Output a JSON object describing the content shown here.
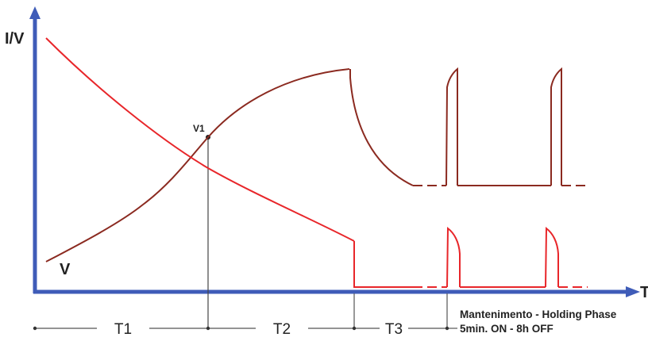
{
  "axes": {
    "y_label": "I/V",
    "x_label": "T",
    "color": "#3f5cb8"
  },
  "curves": {
    "voltage_label": "V",
    "voltage_color": "#8b2a20",
    "current_color": "#e8262a"
  },
  "markers": {
    "v1_label": "V1"
  },
  "phases": {
    "t1": "T1",
    "t2": "T2",
    "t3": "T3",
    "holding_line1": "Mantenimento - Holding Phase",
    "holding_line2": "5min. ON - 8h OFF"
  },
  "colors": {
    "timeline": "#555555",
    "guide": "#444444"
  }
}
